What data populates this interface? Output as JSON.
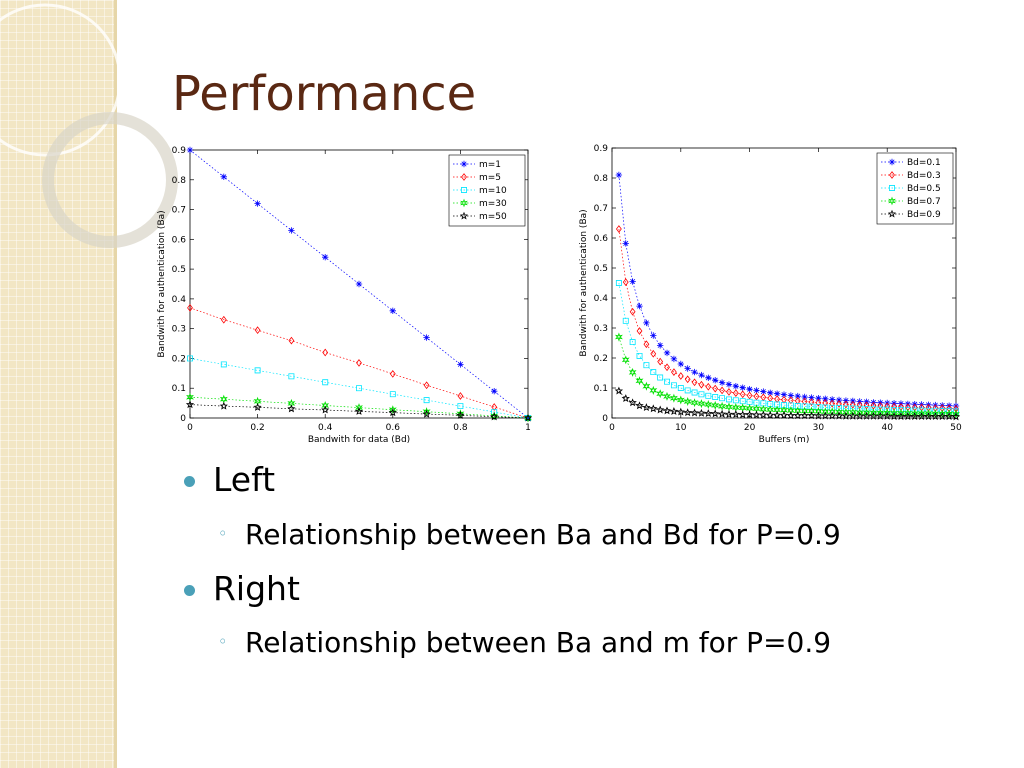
{
  "title": "Performance",
  "bullets": [
    {
      "text": "Left",
      "sub": "Relationship between Ba and Bd for P=0.9"
    },
    {
      "text": "Right",
      "sub": "Relationship between Ba and m for P=0.9"
    }
  ],
  "chart_data": [
    {
      "type": "line",
      "xlabel": "Bandwith for data (Bd)",
      "ylabel": "Bandwith for authentication (Ba)",
      "x": [
        0,
        0.1,
        0.2,
        0.3,
        0.4,
        0.5,
        0.6,
        0.7,
        0.8,
        0.9,
        1
      ],
      "xlim": [
        0,
        1
      ],
      "ylim": [
        0,
        0.9
      ],
      "xticks": [
        0,
        0.2,
        0.4,
        0.6,
        0.8,
        1
      ],
      "yticks": [
        0,
        0.1,
        0.2,
        0.3,
        0.4,
        0.5,
        0.6,
        0.7,
        0.8,
        0.9
      ],
      "legend": "upper right",
      "series": [
        {
          "name": "m=1",
          "color": "#0000ff",
          "marker": "asterisk",
          "values": [
            0.9,
            0.81,
            0.72,
            0.63,
            0.54,
            0.45,
            0.36,
            0.27,
            0.18,
            0.09,
            0
          ]
        },
        {
          "name": "m=5",
          "color": "#ff0000",
          "marker": "diamond",
          "values": [
            0.37,
            0.33,
            0.295,
            0.26,
            0.22,
            0.185,
            0.148,
            0.11,
            0.074,
            0.037,
            0
          ]
        },
        {
          "name": "m=10",
          "color": "#00e5ff",
          "marker": "square",
          "values": [
            0.2,
            0.18,
            0.16,
            0.14,
            0.12,
            0.1,
            0.08,
            0.06,
            0.04,
            0.02,
            0
          ]
        },
        {
          "name": "m=30",
          "color": "#00e000",
          "marker": "hexagram",
          "values": [
            0.07,
            0.063,
            0.056,
            0.049,
            0.042,
            0.035,
            0.028,
            0.021,
            0.014,
            0.007,
            0
          ]
        },
        {
          "name": "m=50",
          "color": "#000000",
          "marker": "pentagram",
          "values": [
            0.045,
            0.04,
            0.036,
            0.031,
            0.027,
            0.022,
            0.018,
            0.013,
            0.009,
            0.004,
            0
          ]
        }
      ]
    },
    {
      "type": "line",
      "xlabel": "Buffers (m)",
      "ylabel": "Bandwith for authentication (Ba)",
      "x": [
        1,
        2,
        3,
        4,
        5,
        6,
        7,
        8,
        9,
        10,
        11,
        12,
        13,
        14,
        15,
        16,
        17,
        18,
        19,
        20,
        21,
        22,
        23,
        24,
        25,
        26,
        27,
        28,
        29,
        30,
        31,
        32,
        33,
        34,
        35,
        36,
        37,
        38,
        39,
        40,
        41,
        42,
        43,
        44,
        45,
        46,
        47,
        48,
        49,
        50
      ],
      "xlim": [
        0,
        50
      ],
      "ylim": [
        0,
        0.9
      ],
      "xticks": [
        0,
        10,
        20,
        30,
        40,
        50
      ],
      "yticks": [
        0,
        0.1,
        0.2,
        0.3,
        0.4,
        0.5,
        0.6,
        0.7,
        0.8,
        0.9
      ],
      "legend": "upper right",
      "series": [
        {
          "name": "Bd=0.1",
          "color": "#0000ff",
          "marker": "asterisk",
          "values": [
            0.81,
            0.582,
            0.455,
            0.373,
            0.317,
            0.275,
            0.242,
            0.217,
            0.197,
            0.18,
            0.165,
            0.153,
            0.143,
            0.134,
            0.126,
            0.118,
            0.112,
            0.106,
            0.101,
            0.096,
            0.092,
            0.088,
            0.084,
            0.081,
            0.078,
            0.075,
            0.073,
            0.07,
            0.068,
            0.066,
            0.064,
            0.062,
            0.06,
            0.058,
            0.057,
            0.055,
            0.054,
            0.052,
            0.051,
            0.05,
            0.049,
            0.048,
            0.047,
            0.046,
            0.045,
            0.044,
            0.043,
            0.042,
            0.041,
            0.04
          ]
        },
        {
          "name": "Bd=0.3",
          "color": "#ff0000",
          "marker": "diamond",
          "values": [
            0.63,
            0.453,
            0.354,
            0.29,
            0.246,
            0.214,
            0.188,
            0.169,
            0.153,
            0.14,
            0.129,
            0.119,
            0.111,
            0.104,
            0.098,
            0.092,
            0.087,
            0.083,
            0.079,
            0.075,
            0.072,
            0.069,
            0.066,
            0.063,
            0.061,
            0.059,
            0.057,
            0.055,
            0.053,
            0.051,
            0.05,
            0.048,
            0.047,
            0.045,
            0.044,
            0.043,
            0.042,
            0.041,
            0.04,
            0.039,
            0.038,
            0.037,
            0.036,
            0.035,
            0.035,
            0.034,
            0.033,
            0.033,
            0.032,
            0.031
          ]
        },
        {
          "name": "Bd=0.5",
          "color": "#00e5ff",
          "marker": "square",
          "values": [
            0.45,
            0.324,
            0.253,
            0.207,
            0.176,
            0.153,
            0.135,
            0.121,
            0.109,
            0.1,
            0.092,
            0.085,
            0.079,
            0.074,
            0.07,
            0.066,
            0.062,
            0.059,
            0.056,
            0.054,
            0.051,
            0.049,
            0.047,
            0.045,
            0.043,
            0.042,
            0.04,
            0.039,
            0.038,
            0.037,
            0.035,
            0.034,
            0.033,
            0.032,
            0.032,
            0.031,
            0.03,
            0.029,
            0.028,
            0.028,
            0.027,
            0.027,
            0.026,
            0.025,
            0.025,
            0.024,
            0.024,
            0.023,
            0.023,
            0.022
          ]
        },
        {
          "name": "Bd=0.7",
          "color": "#00e000",
          "marker": "hexagram",
          "values": [
            0.27,
            0.194,
            0.152,
            0.124,
            0.106,
            0.092,
            0.081,
            0.072,
            0.066,
            0.06,
            0.055,
            0.051,
            0.048,
            0.045,
            0.042,
            0.039,
            0.037,
            0.035,
            0.034,
            0.032,
            0.031,
            0.029,
            0.028,
            0.027,
            0.026,
            0.025,
            0.024,
            0.023,
            0.023,
            0.022,
            0.021,
            0.021,
            0.02,
            0.019,
            0.019,
            0.018,
            0.018,
            0.017,
            0.017,
            0.017,
            0.016,
            0.016,
            0.016,
            0.015,
            0.015,
            0.015,
            0.014,
            0.014,
            0.014,
            0.013
          ]
        },
        {
          "name": "Bd=0.9",
          "color": "#000000",
          "marker": "pentagram",
          "values": [
            0.09,
            0.065,
            0.051,
            0.041,
            0.035,
            0.031,
            0.027,
            0.024,
            0.022,
            0.02,
            0.018,
            0.017,
            0.016,
            0.015,
            0.014,
            0.013,
            0.012,
            0.012,
            0.011,
            0.011,
            0.01,
            0.01,
            0.009,
            0.009,
            0.009,
            0.008,
            0.008,
            0.008,
            0.008,
            0.007,
            0.007,
            0.007,
            0.007,
            0.006,
            0.006,
            0.006,
            0.006,
            0.006,
            0.006,
            0.006,
            0.005,
            0.005,
            0.005,
            0.005,
            0.005,
            0.005,
            0.005,
            0.005,
            0.005,
            0.004
          ]
        }
      ]
    }
  ]
}
